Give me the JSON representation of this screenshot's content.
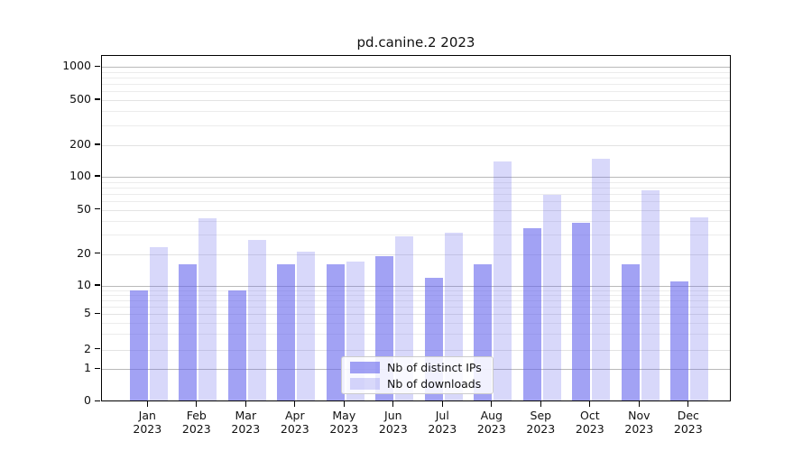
{
  "chart_data": {
    "type": "bar",
    "title": "pd.canine.2 2023",
    "categories": [
      {
        "month": "Jan",
        "year": "2023"
      },
      {
        "month": "Feb",
        "year": "2023"
      },
      {
        "month": "Mar",
        "year": "2023"
      },
      {
        "month": "Apr",
        "year": "2023"
      },
      {
        "month": "May",
        "year": "2023"
      },
      {
        "month": "Jun",
        "year": "2023"
      },
      {
        "month": "Jul",
        "year": "2023"
      },
      {
        "month": "Aug",
        "year": "2023"
      },
      {
        "month": "Sep",
        "year": "2023"
      },
      {
        "month": "Oct",
        "year": "2023"
      },
      {
        "month": "Nov",
        "year": "2023"
      },
      {
        "month": "Dec",
        "year": "2023"
      }
    ],
    "series": [
      {
        "name": "Nb of distinct IPs",
        "values": [
          9,
          16,
          9,
          16,
          16,
          19,
          12,
          16,
          34,
          38,
          16,
          11
        ],
        "color": "#6464ec",
        "opacity": 0.6
      },
      {
        "name": "Nb of downloads",
        "values": [
          23,
          42,
          27,
          21,
          17,
          29,
          31,
          140,
          68,
          150,
          75,
          43
        ],
        "color": "#6464ec",
        "opacity": 0.25
      }
    ],
    "xlabel": "",
    "ylabel": "",
    "yscale": "symlog",
    "yticks": [
      0,
      1,
      2,
      5,
      10,
      20,
      50,
      100,
      200,
      500,
      1000
    ],
    "ytick_labels": [
      "0",
      "1",
      "2",
      "5",
      "10",
      "20",
      "50",
      "100",
      "200",
      "500",
      "1000"
    ],
    "ylim": [
      0,
      1270
    ],
    "grid": "horizontal, major and minor",
    "legend_position": "lower center inside plot"
  }
}
